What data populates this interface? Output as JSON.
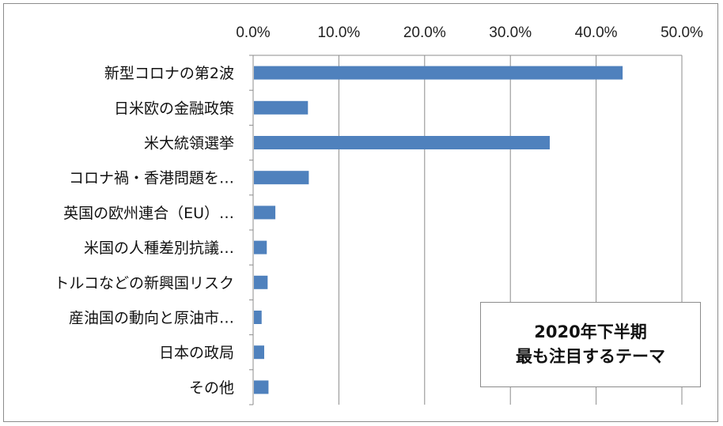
{
  "chart_data": {
    "type": "bar",
    "orientation": "horizontal",
    "categories": [
      "新型コロナの第2波",
      "日米欧の金融政策",
      "米大統領選挙",
      "コロナ禍・香港問題を…",
      "英国の欧州連合（EU）…",
      "米国の人種差別抗議…",
      "トルコなどの新興国リスク",
      "産油国の動向と原油市…",
      "日本の政局",
      "その他"
    ],
    "values": [
      0.43,
      0.063,
      0.345,
      0.064,
      0.025,
      0.015,
      0.016,
      0.009,
      0.012,
      0.017
    ],
    "xlim": [
      0,
      0.5
    ],
    "xticks": [
      "0.0%",
      "10.0%",
      "20.0%",
      "30.0%",
      "40.0%",
      "50.0%"
    ],
    "axis_position": "top",
    "grid": "vertical",
    "bar_color": "#4f81bd",
    "title_box": {
      "line1": "2020年下半期",
      "line2": "最も注目するテーマ",
      "position": "bottom-right"
    }
  }
}
